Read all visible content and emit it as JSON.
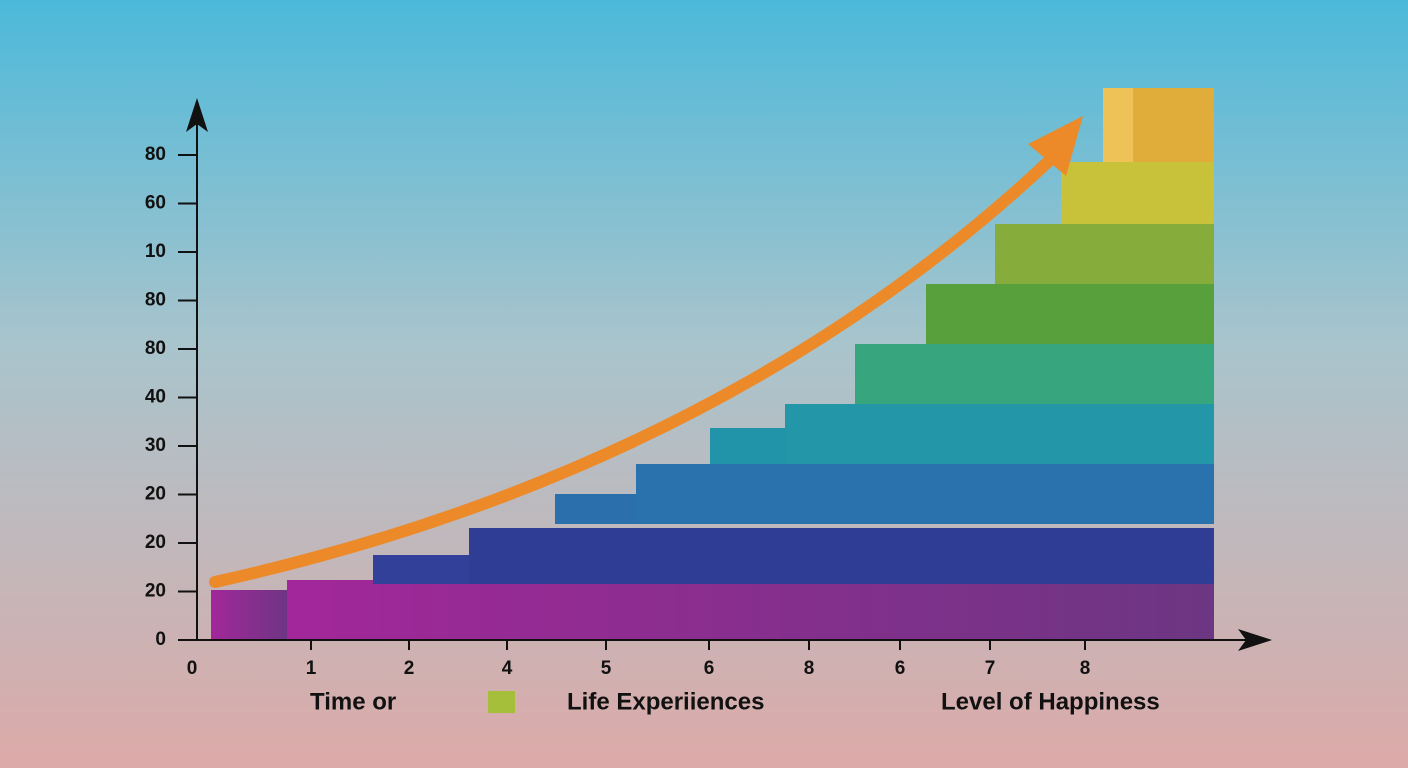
{
  "y_axis_labels": [
    "80",
    "60",
    "10",
    "80",
    "80",
    "40",
    "30",
    "20",
    "20",
    "20",
    "0"
  ],
  "x_axis_labels": [
    "0",
    "1",
    "2",
    "4",
    "5",
    "6",
    "8",
    "6",
    "7",
    "8"
  ],
  "legend": {
    "first": "Time or",
    "second": "Life Experiiences",
    "third": "Level of Happiness"
  }
}
